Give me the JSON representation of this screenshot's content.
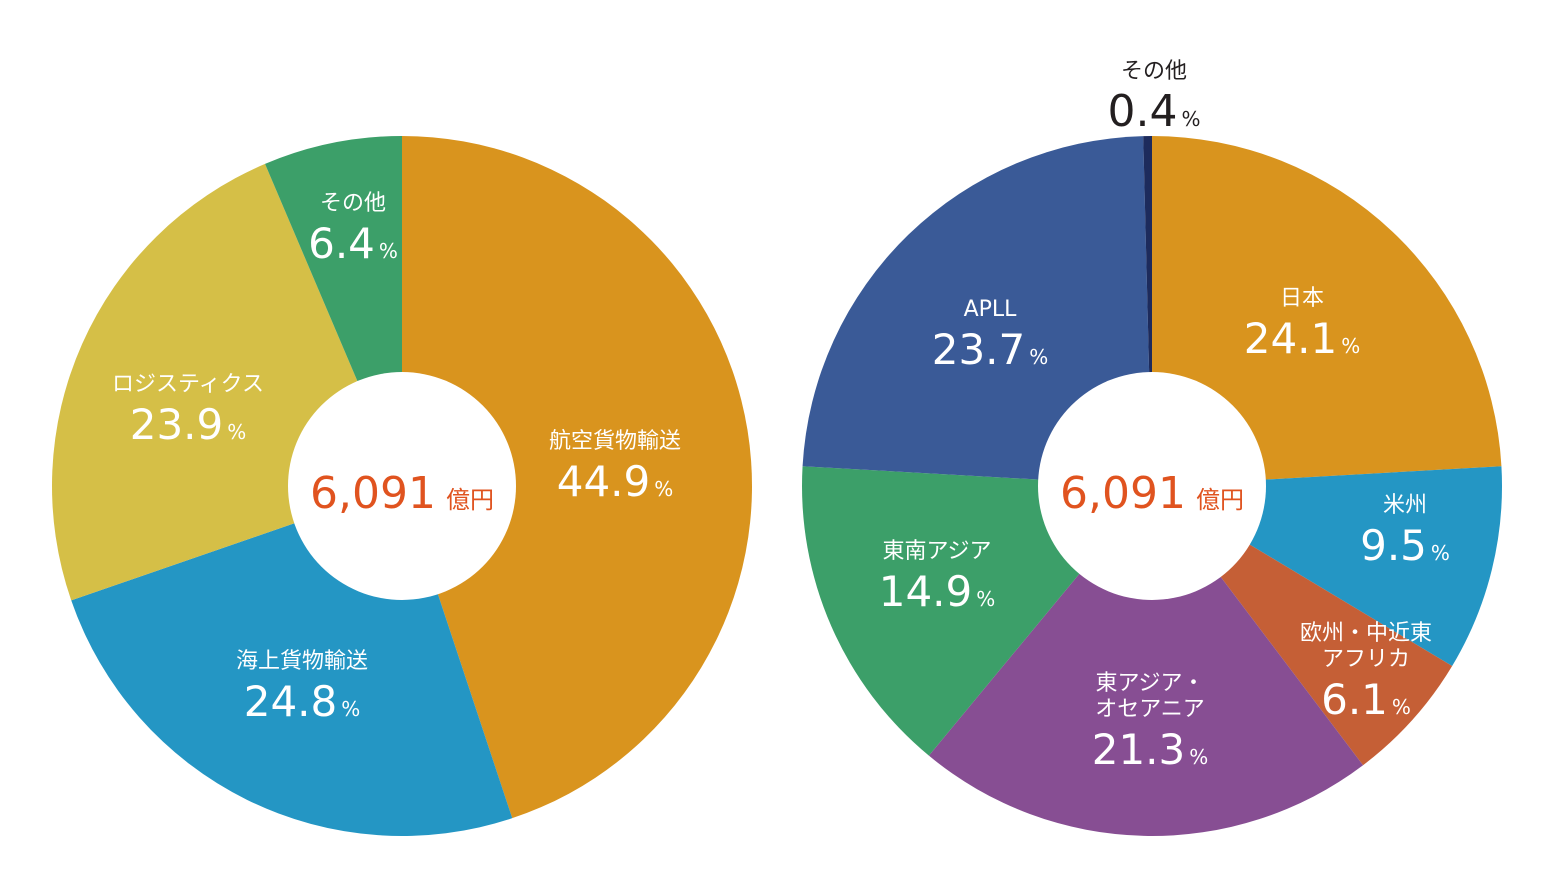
{
  "chart_data": [
    {
      "type": "pie",
      "center_value": "6,091",
      "center_unit": "億円",
      "center_color": "#e0531f",
      "slices": [
        {
          "label": "航空貨物輸送",
          "value": 44.9,
          "color": "#d9941e",
          "label_color": "#ffffff"
        },
        {
          "label": "海上貨物輸送",
          "value": 24.8,
          "color": "#2496c4",
          "label_color": "#ffffff"
        },
        {
          "label": "ロジスティクス",
          "value": 23.9,
          "color": "#d5bf47",
          "label_color": "#ffffff"
        },
        {
          "label": "その他",
          "value": 6.4,
          "color": "#3c9f69",
          "label_color": "#ffffff"
        }
      ]
    },
    {
      "type": "pie",
      "center_value": "6,091",
      "center_unit": "億円",
      "center_color": "#e0531f",
      "slices": [
        {
          "label": "日本",
          "value": 24.1,
          "color": "#d9941e",
          "label_color": "#ffffff"
        },
        {
          "label": "米州",
          "value": 9.5,
          "color": "#2496c4",
          "label_color": "#ffffff"
        },
        {
          "label": "欧州・中近東\nアフリカ",
          "value": 6.1,
          "color": "#c55f36",
          "label_color": "#ffffff"
        },
        {
          "label": "東アジア・\nオセアニア",
          "value": 21.3,
          "color": "#874e93",
          "label_color": "#ffffff"
        },
        {
          "label": "東南アジア",
          "value": 14.9,
          "color": "#3c9f69",
          "label_color": "#ffffff"
        },
        {
          "label": "APLL",
          "value": 23.7,
          "color": "#3a5a97",
          "label_color": "#ffffff"
        },
        {
          "label": "その他",
          "value": 0.4,
          "color": "#1d2b5c",
          "label_color": "#231f20"
        }
      ]
    }
  ]
}
